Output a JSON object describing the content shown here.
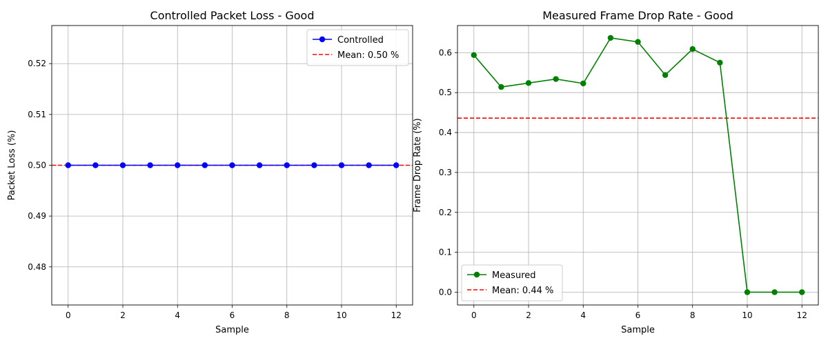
{
  "chart_data": [
    {
      "type": "line",
      "title": "Controlled Packet Loss - Good",
      "xlabel": "Sample",
      "ylabel": "Packet Loss (%)",
      "xlim": [
        -0.6,
        12.6
      ],
      "ylim": [
        0.4725,
        0.5275
      ],
      "xticks": [
        0,
        2,
        4,
        6,
        8,
        10,
        12
      ],
      "yticks": [
        0.48,
        0.49,
        0.5,
        0.51,
        0.52
      ],
      "ytick_format": 2,
      "grid": true,
      "legend_position": "top-right",
      "series": [
        {
          "name": "Controlled",
          "color": "#0000ff",
          "marker": "circle",
          "x": [
            0,
            1,
            2,
            3,
            4,
            5,
            6,
            7,
            8,
            9,
            10,
            11,
            12
          ],
          "y": [
            0.5,
            0.5,
            0.5,
            0.5,
            0.5,
            0.5,
            0.5,
            0.5,
            0.5,
            0.5,
            0.5,
            0.5,
            0.5
          ]
        }
      ],
      "mean_line": {
        "label": "Mean: 0.50 %",
        "value": 0.5,
        "color": "#ff0000"
      }
    },
    {
      "type": "line",
      "title": "Measured Frame Drop Rate - Good",
      "xlabel": "Sample",
      "ylabel": "Frame Drop Rate (%)",
      "xlim": [
        -0.6,
        12.6
      ],
      "ylim": [
        -0.032,
        0.668
      ],
      "xticks": [
        0,
        2,
        4,
        6,
        8,
        10,
        12
      ],
      "yticks": [
        0.0,
        0.1,
        0.2,
        0.3,
        0.4,
        0.5,
        0.6
      ],
      "ytick_format": 1,
      "grid": true,
      "legend_position": "bottom-left",
      "series": [
        {
          "name": "Measured",
          "color": "#008000",
          "marker": "circle",
          "x": [
            0,
            1,
            2,
            3,
            4,
            5,
            6,
            7,
            8,
            9,
            10,
            11,
            12
          ],
          "y": [
            0.594,
            0.514,
            0.524,
            0.534,
            0.523,
            0.637,
            0.627,
            0.544,
            0.609,
            0.575,
            0.0,
            0.0,
            0.0
          ]
        }
      ],
      "mean_line": {
        "label": "Mean: 0.44 %",
        "value": 0.436,
        "color": "#ff0000"
      }
    }
  ]
}
